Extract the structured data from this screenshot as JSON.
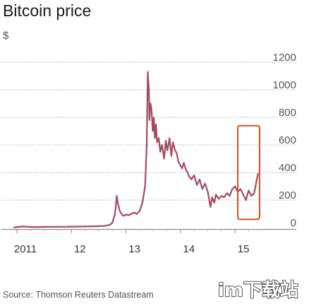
{
  "chart_data": {
    "type": "line",
    "title": "Bitcoin price",
    "ylabel": "$",
    "xlabel": "",
    "ylim": [
      0,
      1200
    ],
    "yticks": [
      0,
      200,
      400,
      600,
      800,
      1000,
      1200
    ],
    "x_tick_labels": [
      {
        "label": "2011",
        "x": 2011.0
      },
      {
        "label": "12",
        "x": 2012.0
      },
      {
        "label": "13",
        "x": 2013.0
      },
      {
        "label": "14",
        "x": 2014.0
      },
      {
        "label": "15",
        "x": 2015.0
      }
    ],
    "xlim": [
      2010.9,
      2015.55
    ],
    "grid": true,
    "series_color": "#a34a62",
    "series": [
      {
        "x": [
          2010.95,
          2011.1,
          2011.3,
          2011.45,
          2011.6,
          2011.8,
          2012.0,
          2012.2,
          2012.4,
          2012.6,
          2012.7,
          2012.75,
          2012.8,
          2012.83,
          2012.85,
          2012.88,
          2012.9,
          2012.95,
          2013.0,
          2013.05,
          2013.1,
          2013.15,
          2013.2,
          2013.25,
          2013.3,
          2013.35,
          2013.38,
          2013.4,
          2013.42,
          2013.43,
          2013.45,
          2013.47,
          2013.49,
          2013.51,
          2013.53,
          2013.55,
          2013.57,
          2013.6,
          2013.63,
          2013.66,
          2013.7,
          2013.73,
          2013.76,
          2013.8,
          2013.83,
          2013.86,
          2013.9,
          2013.93,
          2013.96,
          2014.0,
          2014.03,
          2014.06,
          2014.1,
          2014.13,
          2014.16,
          2014.2,
          2014.25,
          2014.3,
          2014.35,
          2014.4,
          2014.45,
          2014.5,
          2014.55,
          2014.58,
          2014.62,
          2014.65,
          2014.7,
          2014.75,
          2014.8,
          2014.85,
          2014.9,
          2014.95,
          2015.0,
          2015.05,
          2015.1,
          2015.15,
          2015.2,
          2015.25,
          2015.3,
          2015.35,
          2015.4,
          2015.42
        ],
        "y": [
          2,
          8,
          4,
          5,
          6,
          6,
          7,
          8,
          10,
          12,
          20,
          35,
          100,
          230,
          180,
          130,
          110,
          85,
          95,
          90,
          100,
          110,
          100,
          120,
          180,
          300,
          600,
          1130,
          1000,
          780,
          900,
          850,
          700,
          800,
          650,
          750,
          620,
          650,
          550,
          600,
          500,
          630,
          560,
          650,
          520,
          620,
          560,
          540,
          480,
          450,
          430,
          470,
          420,
          400,
          370,
          350,
          380,
          310,
          350,
          280,
          320,
          260,
          150,
          220,
          180,
          240,
          210,
          230,
          220,
          250,
          230,
          280,
          300,
          260,
          280,
          240,
          200,
          270,
          230,
          250,
          350,
          390
        ]
      }
    ],
    "annotations": [
      {
        "type": "highlight-box",
        "x_range": [
          2015.05,
          2015.45
        ],
        "y_range": [
          60,
          740
        ],
        "color": "#d0501e"
      }
    ],
    "source": "Source: Thomson Reuters Datastream",
    "watermark": "im下载站"
  }
}
